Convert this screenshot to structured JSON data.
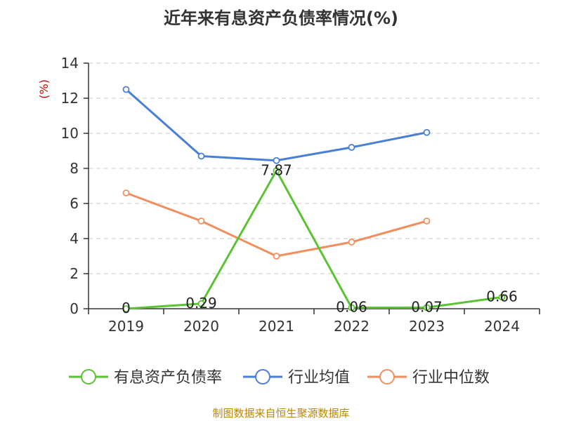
{
  "chart_data": {
    "type": "line",
    "title": "近年来有息资产负债率情况(%)",
    "ylabel": "(%)",
    "xlabel": "",
    "categories": [
      "2019",
      "2020",
      "2021",
      "2022",
      "2023",
      "2024"
    ],
    "ylim": [
      0,
      14
    ],
    "yticks": [
      0,
      2,
      4,
      6,
      8,
      10,
      12,
      14
    ],
    "grid": true,
    "legend_position": "bottom",
    "series": [
      {
        "name": "有息资产负债率",
        "color": "#5bc234",
        "values": [
          0,
          0.29,
          7.87,
          0.06,
          0.07,
          0.66
        ],
        "labels": [
          "0",
          "0.29",
          "7.87",
          "0.06",
          "0.07",
          "0.66"
        ]
      },
      {
        "name": "行业均值",
        "color": "#4a7fd8",
        "values": [
          12.5,
          8.7,
          8.45,
          9.2,
          10.05,
          null
        ]
      },
      {
        "name": "行业中位数",
        "color": "#f28e5c",
        "values": [
          6.6,
          5.0,
          3.0,
          3.8,
          5.0,
          null
        ]
      }
    ],
    "source": "制图数据来自恒生聚源数据库"
  }
}
